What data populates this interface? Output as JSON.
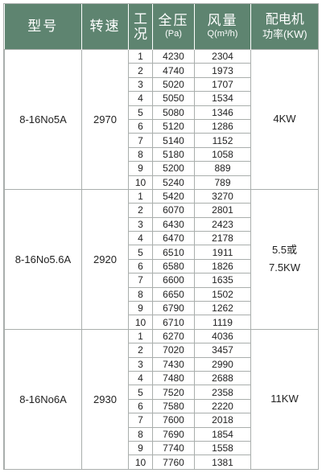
{
  "headers": {
    "model": "型号",
    "speed": "转速",
    "condition_line1": "工",
    "condition_line2": "况",
    "pressure": "全压",
    "pressure_unit": "(Pa)",
    "flow": "风量",
    "flow_unit": "Q(m³/h)",
    "power_line1": "配电机",
    "power_line2": "功率(KW)"
  },
  "colors": {
    "header_bg": "#5e8470",
    "grid": "#a9aeac"
  },
  "groups": [
    {
      "model": "8-16No5A",
      "speed": "2970",
      "power_line1": "4KW",
      "power_line2": "",
      "rows": [
        {
          "n": "1",
          "p": "4230",
          "q": "2304"
        },
        {
          "n": "2",
          "p": "4740",
          "q": "1973"
        },
        {
          "n": "3",
          "p": "5020",
          "q": "1707"
        },
        {
          "n": "4",
          "p": "5050",
          "q": "1534"
        },
        {
          "n": "5",
          "p": "5080",
          "q": "1346"
        },
        {
          "n": "6",
          "p": "5120",
          "q": "1286"
        },
        {
          "n": "7",
          "p": "5140",
          "q": "1152"
        },
        {
          "n": "8",
          "p": "5180",
          "q": "1058"
        },
        {
          "n": "9",
          "p": "5200",
          "q": "889"
        },
        {
          "n": "10",
          "p": "5240",
          "q": "789"
        }
      ]
    },
    {
      "model": "8-16No5.6A",
      "speed": "2920",
      "power_line1": "5.5或",
      "power_line2": "7.5KW",
      "rows": [
        {
          "n": "1",
          "p": "5420",
          "q": "3270"
        },
        {
          "n": "2",
          "p": "6070",
          "q": "2801"
        },
        {
          "n": "3",
          "p": "6430",
          "q": "2423"
        },
        {
          "n": "4",
          "p": "6470",
          "q": "2178"
        },
        {
          "n": "5",
          "p": "6510",
          "q": "1911"
        },
        {
          "n": "6",
          "p": "6580",
          "q": "1826"
        },
        {
          "n": "7",
          "p": "6600",
          "q": "1635"
        },
        {
          "n": "8",
          "p": "6650",
          "q": "1502"
        },
        {
          "n": "9",
          "p": "6790",
          "q": "1262"
        },
        {
          "n": "10",
          "p": "6710",
          "q": "1119"
        }
      ]
    },
    {
      "model": "8-16No6A",
      "speed": "2930",
      "power_line1": "11KW",
      "power_line2": "",
      "rows": [
        {
          "n": "1",
          "p": "6270",
          "q": "4036"
        },
        {
          "n": "2",
          "p": "7020",
          "q": "3457"
        },
        {
          "n": "3",
          "p": "7430",
          "q": "2990"
        },
        {
          "n": "4",
          "p": "7480",
          "q": "2688"
        },
        {
          "n": "5",
          "p": "7520",
          "q": "2358"
        },
        {
          "n": "6",
          "p": "7580",
          "q": "2220"
        },
        {
          "n": "7",
          "p": "7600",
          "q": "2018"
        },
        {
          "n": "8",
          "p": "7690",
          "q": "1854"
        },
        {
          "n": "9",
          "p": "7740",
          "q": "1558"
        },
        {
          "n": "10",
          "p": "7760",
          "q": "1381"
        }
      ]
    }
  ]
}
